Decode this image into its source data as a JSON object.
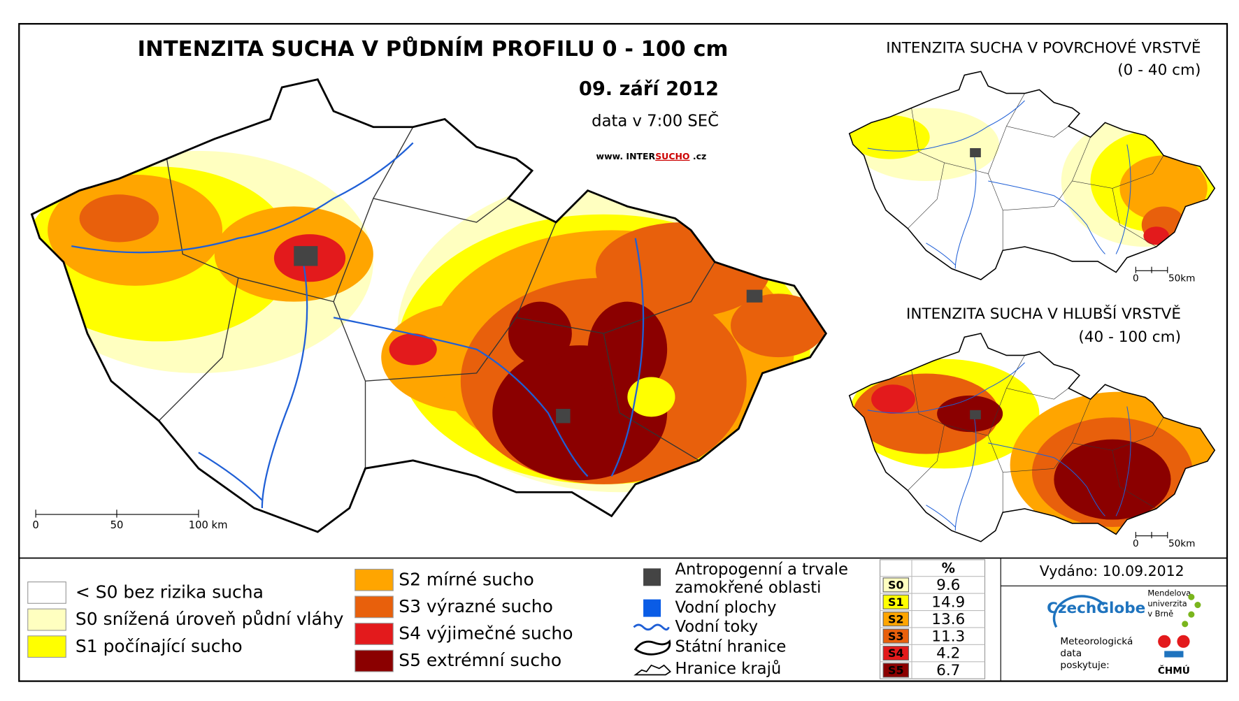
{
  "header": {
    "title": "INTENZITA SUCHA V PŮDNÍM PROFILU 0 - 100 cm",
    "date": "09. září 2012",
    "data_time": "data v 7:00 SEČ",
    "website": {
      "prefix": "www. INTER",
      "highlight": "SUCHO",
      "suffix": " .cz"
    }
  },
  "main_map": {
    "scale": [
      "0",
      "50",
      "100 km"
    ]
  },
  "insets": [
    {
      "title": "INTENZITA SUCHA V POVRCHOVÉ VRSTVĚ",
      "subtitle": "(0 - 40 cm)",
      "scale": [
        "0",
        "50km"
      ]
    },
    {
      "title": "INTENZITA SUCHA V HLUBŠÍ VRSTVĚ",
      "subtitle": "(40 - 100 cm)",
      "scale": [
        "0",
        "50km"
      ]
    }
  ],
  "legend": {
    "classes": [
      {
        "label": "< S0 bez rizika sucha",
        "color": "#ffffff"
      },
      {
        "label": "S0 snížená úroveň půdní vláhy",
        "color": "#ffffc0"
      },
      {
        "label": "S1 počínající sucho",
        "color": "#ffff00"
      },
      {
        "label": "S2 mírné sucho",
        "color": "#ffa500"
      },
      {
        "label": "S3 výrazné sucho",
        "color": "#e8600c"
      },
      {
        "label": "S4 výjimečné sucho",
        "color": "#e31a1c"
      },
      {
        "label": "S5 extrémní sucho",
        "color": "#8b0000"
      }
    ],
    "symbols": [
      [
        "Antropogenní a trvale",
        "zamokřené oblasti"
      ],
      [
        "Vodní plochy"
      ],
      [
        "Vodní toky"
      ],
      [
        "Státní hranice"
      ],
      [
        "Hranice krajů"
      ]
    ]
  },
  "stats": {
    "header": "%",
    "rows": [
      {
        "class": "S0",
        "percent": 9.6,
        "color": "#ffffc0"
      },
      {
        "class": "S1",
        "percent": 14.9,
        "color": "#ffff00"
      },
      {
        "class": "S2",
        "percent": 13.6,
        "color": "#ffa500"
      },
      {
        "class": "S3",
        "percent": 11.3,
        "color": "#e8600c"
      },
      {
        "class": "S4",
        "percent": 4.2,
        "color": "#e31a1c"
      },
      {
        "class": "S5",
        "percent": 6.7,
        "color": "#8b0000"
      }
    ]
  },
  "issued": "Vydáno: 10.09.2012",
  "credits": {
    "czechglobe": "CzechGlobe",
    "mendel": [
      "Mendelova",
      "univerzita",
      "v Brně"
    ],
    "provider": [
      "Meteorologická",
      "data",
      "poskytuje:"
    ],
    "chmu": "ČHMÚ"
  }
}
